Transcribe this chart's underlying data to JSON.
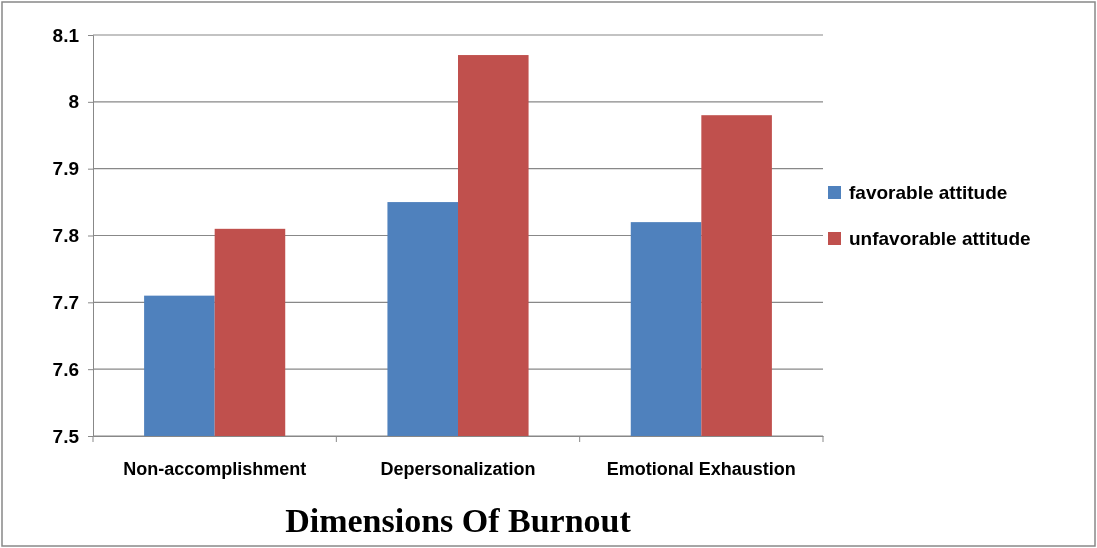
{
  "chart_data": {
    "type": "bar",
    "xlabel": "Dimensions Of Burnout",
    "categories": [
      "Non-accomplishment",
      "Depersonalization",
      "Emotional Exhaustion"
    ],
    "series": [
      {
        "name": "favorable attitude",
        "color": "#4f81bd",
        "values": [
          7.71,
          7.85,
          7.82
        ]
      },
      {
        "name": "unfavorable attitude",
        "color": "#c0504d",
        "values": [
          7.81,
          8.07,
          7.98
        ]
      }
    ],
    "ylim": [
      7.5,
      8.1
    ],
    "yticks": [
      7.5,
      7.6,
      7.7,
      7.8,
      7.9,
      {
        "value": 8,
        "label": "8"
      },
      8.1
    ],
    "grid": "y",
    "legend": "right"
  }
}
